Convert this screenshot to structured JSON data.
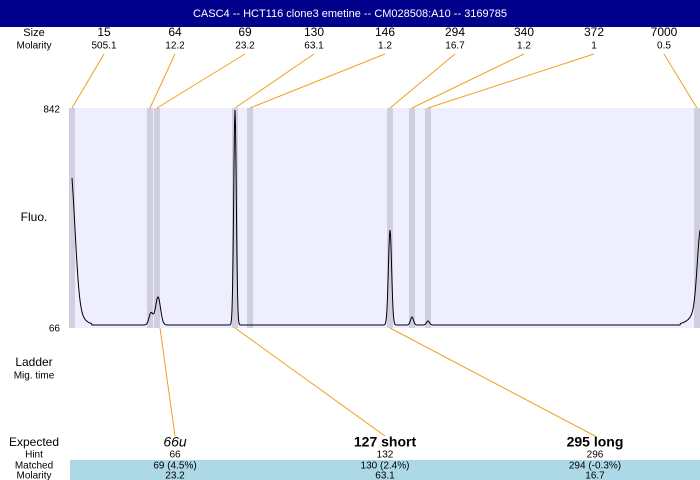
{
  "header": {
    "title": "CASC4 -- HCT116 clone3 emetine -- CM028508:A10 -- 3169785"
  },
  "peaks": {
    "row_labels": [
      "Size",
      "Molarity"
    ],
    "sizes": [
      "15",
      "64",
      "69",
      "130",
      "146",
      "294",
      "340",
      "372",
      "7000"
    ],
    "molarities": [
      "505.1",
      "12.2",
      "23.2",
      "63.1",
      "1.2",
      "16.7",
      "1.2",
      "1",
      "0.5"
    ]
  },
  "plot": {
    "y_label": "Fluo.",
    "y_max": "842",
    "y_min": "66"
  },
  "ladder": {
    "label": "Ladder",
    "sublabel": "Mig. time"
  },
  "table": {
    "row_labels": [
      "Expected",
      "Hint",
      "Matched",
      "Molarity"
    ],
    "columns": [
      {
        "expected": "66u",
        "hint": "66",
        "matched": "69 (4.5%)",
        "molarity": "23.2"
      },
      {
        "expected": "127 short",
        "hint": "132",
        "matched": "130 (2.4%)",
        "molarity": "63.1"
      },
      {
        "expected": "295 long",
        "hint": "296",
        "matched": "294 (-0.3%)",
        "molarity": "16.7"
      }
    ]
  }
}
